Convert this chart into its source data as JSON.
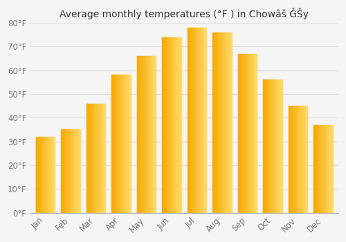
{
  "title": "Average monthly temperatures (°F ) in Chowâš ǦŠy",
  "months": [
    "Jan",
    "Feb",
    "Mar",
    "Apr",
    "May",
    "Jun",
    "Jul",
    "Aug",
    "Sep",
    "Oct",
    "Nov",
    "Dec"
  ],
  "values": [
    32,
    35,
    46,
    58,
    66,
    74,
    78,
    76,
    67,
    56,
    45,
    37
  ],
  "bar_color_dark": "#F5A800",
  "bar_color_light": "#FFD966",
  "ylim": [
    0,
    80
  ],
  "yticks": [
    0,
    10,
    20,
    30,
    40,
    50,
    60,
    70,
    80
  ],
  "background_color": "#f5f5f5",
  "plot_bg_color": "#f5f5f5",
  "grid_color": "#dddddd",
  "title_fontsize": 10,
  "tick_fontsize": 8.5
}
